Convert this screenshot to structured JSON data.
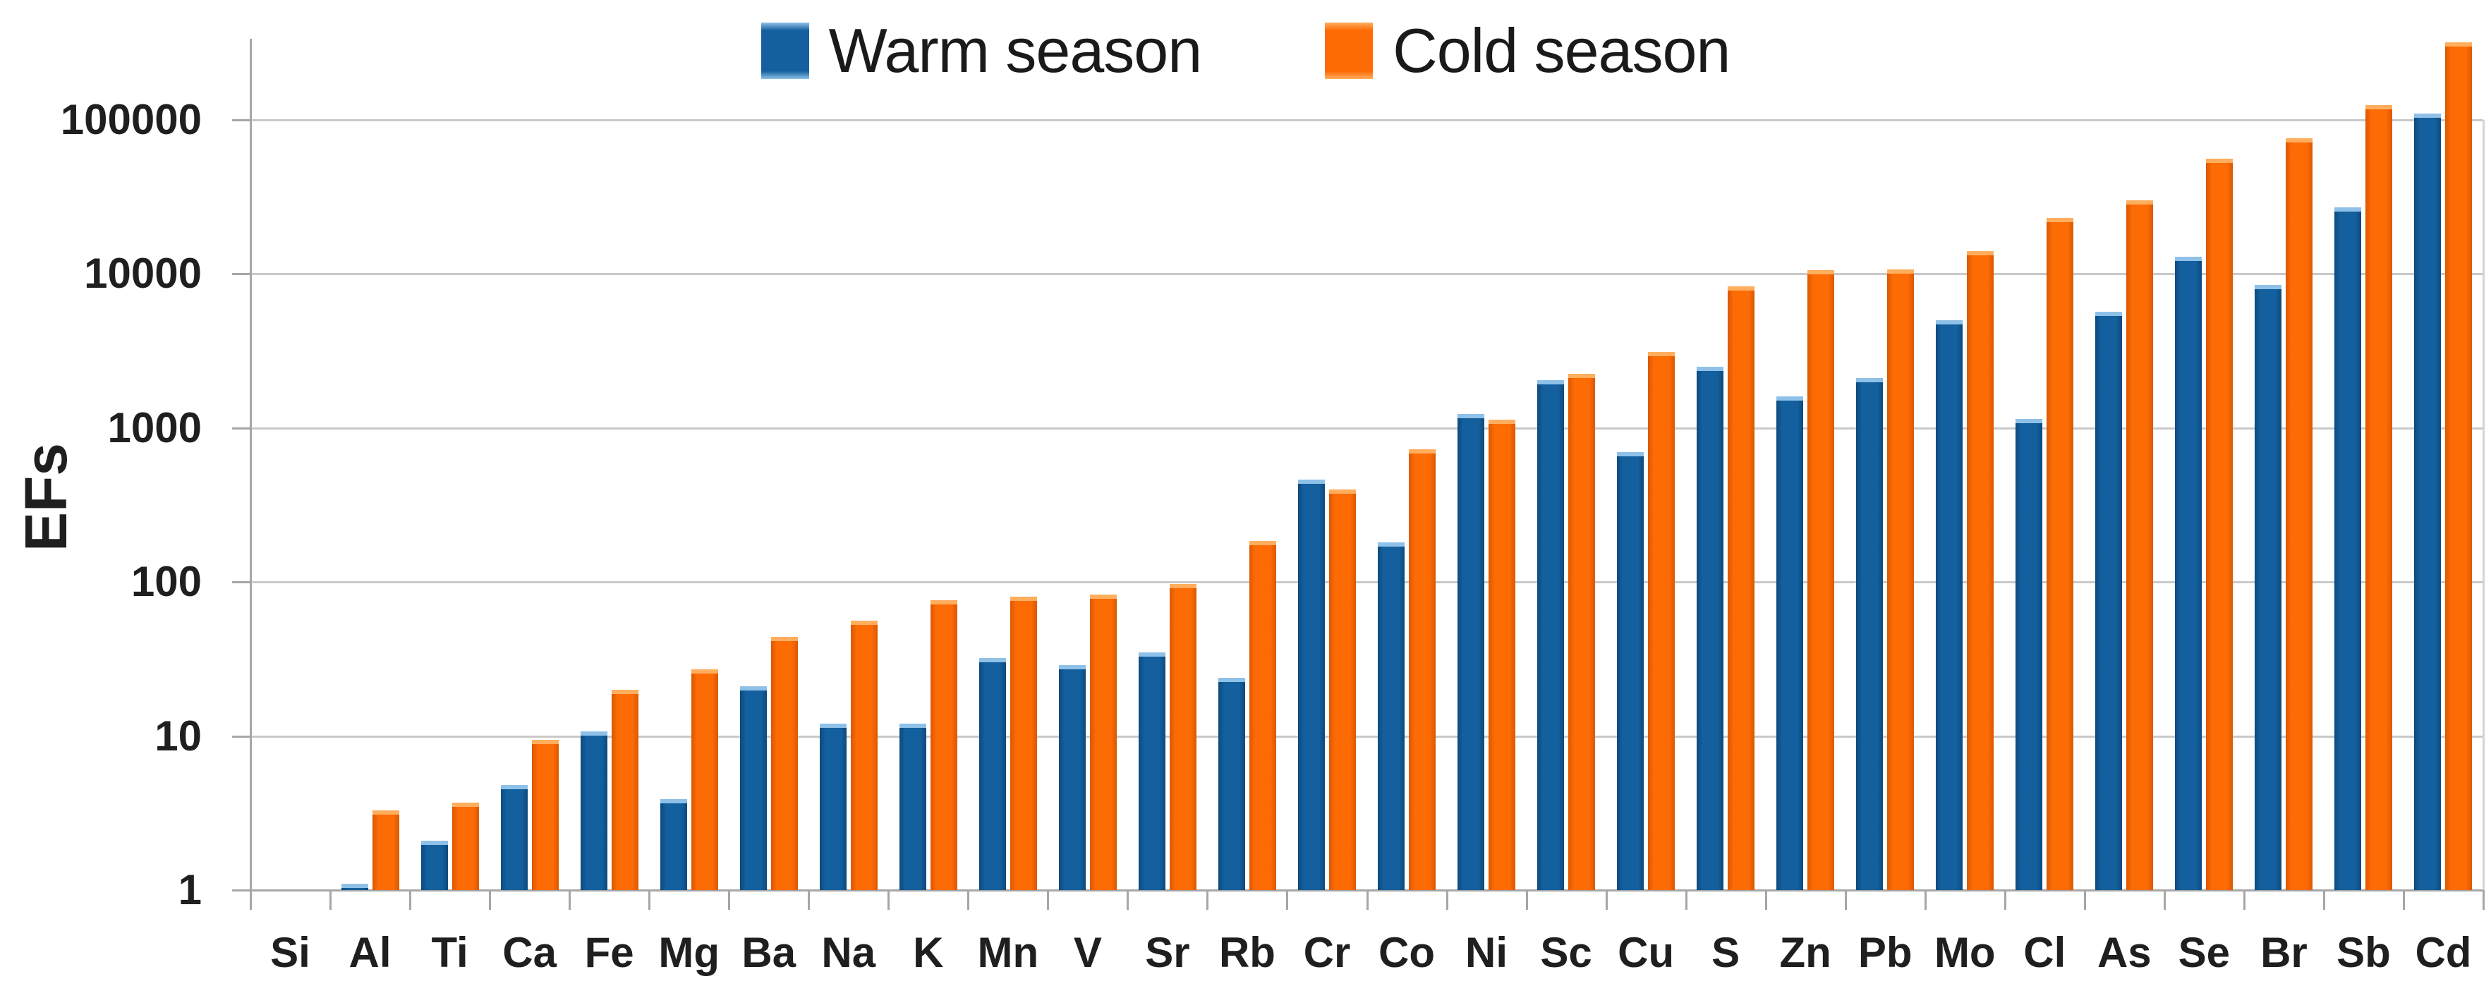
{
  "chart_data": {
    "type": "bar",
    "title": "",
    "xlabel": "",
    "ylabel": "EFs",
    "y_scale": "log",
    "ylim": [
      1,
      320000
    ],
    "ytick_values": [
      1,
      10,
      100,
      1000,
      10000,
      100000
    ],
    "ytick_labels": [
      "1",
      "10",
      "100",
      "1000",
      "10000",
      "100000"
    ],
    "grid": true,
    "legend_position": "top-center",
    "categories": [
      "Si",
      "Al",
      "Ti",
      "Ca",
      "Fe",
      "Mg",
      "Ba",
      "Na",
      "K",
      "Mn",
      "V",
      "Sr",
      "Rb",
      "Cr",
      "Co",
      "Ni",
      "Sc",
      "Cu",
      "S",
      "Zn",
      "Pb",
      "Mo",
      "Cl",
      "As",
      "Se",
      "Br",
      "Sb",
      "Cd"
    ],
    "series": [
      {
        "name": "Warm season",
        "color": "#14609E",
        "edge_color": "#0C4A7E",
        "bevel_color": "#8FC1E8",
        "values": [
          1,
          1.1,
          2.1,
          4.8,
          10.7,
          3.9,
          21,
          12,
          12,
          32,
          29,
          35,
          24,
          460,
          180,
          1230,
          2050,
          700,
          2500,
          1600,
          2100,
          5000,
          1150,
          5700,
          13000,
          8500,
          27000,
          110000
        ]
      },
      {
        "name": "Cold season",
        "color": "#FD6B05",
        "edge_color": "#DB5800",
        "bevel_color": "#FFAE5E",
        "values": [
          1,
          3.3,
          3.7,
          9.4,
          20,
          27,
          44,
          56,
          76,
          80,
          83,
          97,
          185,
          400,
          730,
          1130,
          2250,
          3100,
          8300,
          10600,
          10700,
          14000,
          23000,
          30000,
          56000,
          76000,
          125000,
          320000
        ]
      }
    ],
    "colors": {
      "gridline": "#c9c9c9",
      "axis": "#a6a6a6",
      "text": "#1f1f1f",
      "background": "#ffffff"
    }
  }
}
